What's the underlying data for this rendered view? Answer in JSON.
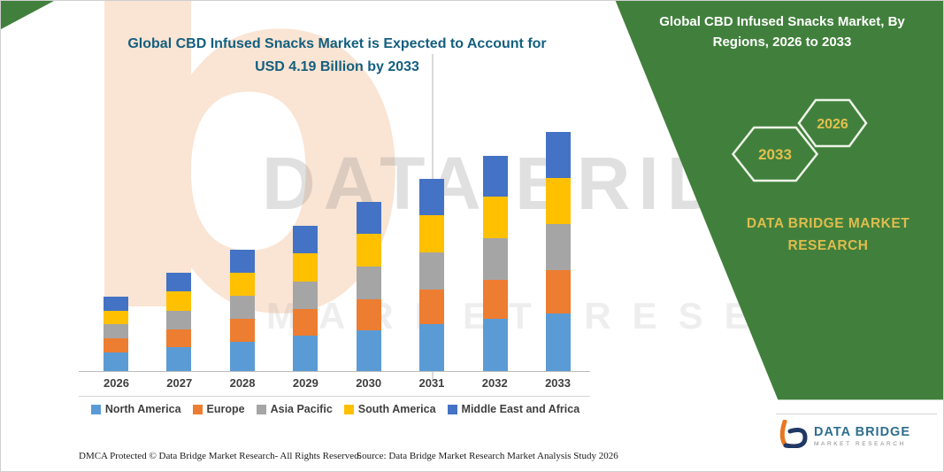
{
  "chart": {
    "title_line1": "Global CBD Infused Snacks Market is Expected to Account for",
    "title_line2": "USD 4.19 Billion by 2033"
  },
  "chart_data": {
    "type": "bar",
    "stacked": true,
    "title": "Global CBD Infused Snacks Market is Expected to Account for USD 4.19 Billion by 2033",
    "unit": "USD Billion",
    "categories": [
      "2026",
      "2027",
      "2028",
      "2029",
      "2030",
      "2031",
      "2032",
      "2033"
    ],
    "series": [
      {
        "name": "North America",
        "color": "#5B9BD5",
        "values": [
          0.33,
          0.42,
          0.52,
          0.62,
          0.72,
          0.82,
          0.91,
          1.01
        ]
      },
      {
        "name": "Europe",
        "color": "#ED7D31",
        "values": [
          0.24,
          0.31,
          0.39,
          0.46,
          0.54,
          0.61,
          0.69,
          0.76
        ]
      },
      {
        "name": "Asia Pacific",
        "color": "#A5A5A5",
        "values": [
          0.25,
          0.33,
          0.41,
          0.49,
          0.57,
          0.65,
          0.73,
          0.81
        ]
      },
      {
        "name": "South America",
        "color": "#FFC000",
        "values": [
          0.24,
          0.33,
          0.41,
          0.49,
          0.57,
          0.65,
          0.73,
          0.81
        ]
      },
      {
        "name": "Middle East and Africa",
        "color": "#4472C4",
        "values": [
          0.24,
          0.33,
          0.4,
          0.48,
          0.56,
          0.64,
          0.72,
          0.8
        ]
      }
    ],
    "totals": [
      1.3,
      1.72,
      2.13,
      2.54,
      2.96,
      3.37,
      3.78,
      4.19
    ],
    "ylim": [
      0,
      4.19
    ],
    "xlabel": "",
    "ylabel": "",
    "y_axis_visible": false,
    "grid": false,
    "legend_position": "bottom",
    "values_estimated_from_pixels": true
  },
  "side_panel": {
    "title_line1": "Global CBD Infused Snacks Market, By",
    "title_line2": "Regions, 2026 to 2033",
    "hexagons": [
      "2033",
      "2026"
    ],
    "brand_line1": "DATA BRIDGE MARKET",
    "brand_line2": "RESEARCH",
    "bg_color": "#41803C",
    "gold_color": "#DFBC4E"
  },
  "watermark": {
    "line1": "DATA BRIDGE",
    "line2": "MARKET RESEARCH",
    "letter_b": "b"
  },
  "footer": {
    "left": "DMCA Protected © Data Bridge Market Research-  All Rights Reserved.",
    "source": "Source: Data Bridge Market Research  Market Analysis Study 2026"
  },
  "logo": {
    "name": "DATA BRIDGE",
    "tagline": "MARKET RESEARCH"
  }
}
